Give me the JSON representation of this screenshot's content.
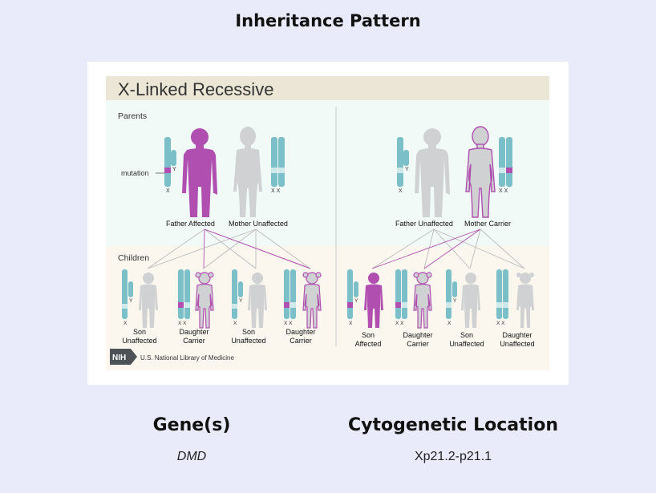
{
  "header": {
    "title": "Inheritance Pattern"
  },
  "figure": {
    "title": "X-Linked Recessive",
    "parents_label": "Parents",
    "children_label": "Children",
    "mutation_label": "mutation",
    "left_parents": {
      "father": "Father Affected",
      "mother": "Mother Unaffected"
    },
    "right_parents": {
      "father": "Father Unaffected",
      "mother": "Mother Carrier"
    },
    "left_children": [
      {
        "line1": "Son",
        "line2": "Unaffected"
      },
      {
        "line1": "Daughter",
        "line2": "Carrier"
      },
      {
        "line1": "Son",
        "line2": "Unaffected"
      },
      {
        "line1": "Daughter",
        "line2": "Carrier"
      }
    ],
    "right_children": [
      {
        "line1": "Son",
        "line2": "Affected"
      },
      {
        "line1": "Daughter",
        "line2": "Carrier"
      },
      {
        "line1": "Son",
        "line2": "Unaffected"
      },
      {
        "line1": "Daughter",
        "line2": "Unaffected"
      }
    ],
    "chrom_x": "X",
    "chrom_y": "Y",
    "chrom_xx": "X X",
    "logo_badge": "NIH",
    "logo_text": "U.S. National Library of Medicine",
    "colors": {
      "affected": "#b04fb0",
      "unaffected": "#cfd1d2",
      "chromosome": "#7bbfc9",
      "parents_bg": "#f1faf6",
      "children_bg": "#fbf7ef",
      "title_bg": "#ece6d6"
    }
  },
  "gene": {
    "heading": "Gene(s)",
    "value": "DMD"
  },
  "cytogenetic": {
    "heading": "Cytogenetic Location",
    "value": "Xp21.2-p21.1"
  }
}
